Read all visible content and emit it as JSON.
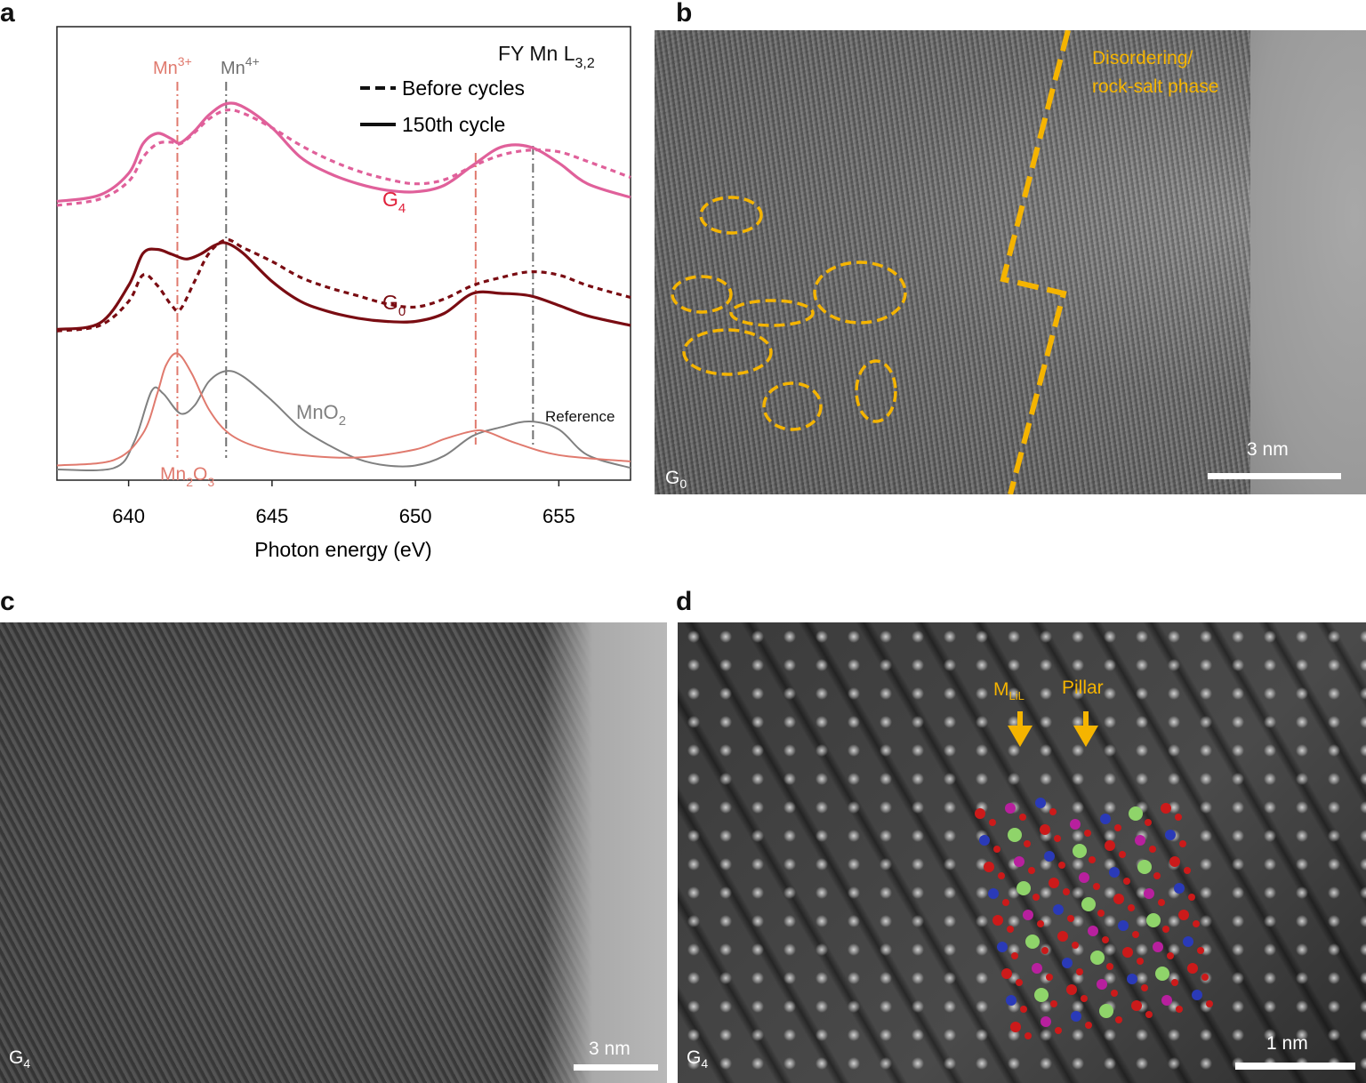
{
  "panels": {
    "a": {
      "letter": "a"
    },
    "b": {
      "letter": "b",
      "annotation_line1": "Disordering/",
      "annotation_line2": "rock-salt phase",
      "sample_label": "G",
      "sample_sub": "0",
      "scale_label": "3 nm"
    },
    "c": {
      "letter": "c",
      "sample_label": "G",
      "sample_sub": "4",
      "scale_label": "3 nm"
    },
    "d": {
      "letter": "d",
      "sample_label": "G",
      "sample_sub": "4",
      "scale_label": "1 nm",
      "arrow1_label": "M",
      "arrow1_sub": "LiL",
      "arrow2_label": "Pillar"
    }
  },
  "chart_data": {
    "type": "line",
    "title": "FY Mn L",
    "title_sub": "3,2",
    "xlabel": "Photon energy (eV)",
    "ylabel": "",
    "xlim": [
      637.5,
      657.5
    ],
    "xticks": [
      640,
      645,
      650,
      655
    ],
    "legend": {
      "placement": "top-right",
      "dashed_label": "Before cycles",
      "solid_label": "150th cycle"
    },
    "reference_lines": [
      {
        "label": "Mn",
        "sup": "3+",
        "x": [
          641.7,
          652.1
        ],
        "color": "#e07a6e"
      },
      {
        "label": "Mn",
        "sup": "4+",
        "x": [
          643.4,
          654.1
        ],
        "color": "#707070"
      }
    ],
    "series": [
      {
        "name": "G4",
        "label": "G",
        "label_sub": "4",
        "style": "solid",
        "color": "#e0609a",
        "offset": 3.35,
        "x": [
          637.5,
          639,
          640,
          640.5,
          641,
          641.5,
          641.8,
          642.3,
          642.8,
          643.4,
          644,
          645,
          646,
          647,
          648,
          649,
          650,
          651,
          652,
          653,
          654,
          655,
          656,
          657.5
        ],
        "y": [
          0.0,
          0.08,
          0.35,
          0.72,
          0.85,
          0.78,
          0.73,
          0.88,
          1.08,
          1.22,
          1.18,
          0.92,
          0.55,
          0.35,
          0.22,
          0.14,
          0.12,
          0.2,
          0.45,
          0.68,
          0.68,
          0.48,
          0.22,
          0.05
        ]
      },
      {
        "name": "G4 before cycles",
        "style": "dashed",
        "color": "#e0609a",
        "offset": 3.35,
        "x": [
          637.5,
          639,
          640,
          640.5,
          641,
          641.5,
          641.8,
          642.3,
          642.8,
          643.4,
          644,
          645,
          646,
          647,
          648,
          649,
          650,
          651,
          652,
          653,
          654,
          655,
          656,
          657.5
        ],
        "y": [
          -0.05,
          0.03,
          0.25,
          0.55,
          0.72,
          0.74,
          0.72,
          0.86,
          1.03,
          1.14,
          1.1,
          0.92,
          0.7,
          0.52,
          0.38,
          0.28,
          0.22,
          0.27,
          0.44,
          0.58,
          0.64,
          0.62,
          0.5,
          0.3
        ]
      },
      {
        "name": "G0",
        "label": "G",
        "label_sub": "0",
        "style": "solid",
        "color": "#7a0c12",
        "offset": 1.75,
        "x": [
          637.5,
          639,
          640,
          640.5,
          641,
          641.5,
          642,
          642.5,
          643,
          643.4,
          644,
          645,
          646,
          647,
          648,
          649,
          650,
          651,
          652,
          653,
          654,
          655,
          656,
          657.5
        ],
        "y": [
          0.0,
          0.08,
          0.55,
          0.95,
          1.0,
          0.94,
          0.88,
          0.94,
          1.05,
          1.08,
          0.95,
          0.6,
          0.35,
          0.22,
          0.14,
          0.1,
          0.1,
          0.2,
          0.45,
          0.45,
          0.42,
          0.3,
          0.17,
          0.05
        ]
      },
      {
        "name": "G0 before cycles",
        "style": "dashed",
        "color": "#7a0c12",
        "offset": 1.75,
        "x": [
          637.5,
          639,
          640,
          640.5,
          641,
          641.5,
          641.8,
          642.3,
          642.8,
          643.4,
          644,
          645,
          646,
          647,
          648,
          649,
          650,
          651,
          652,
          653,
          654,
          655,
          656,
          657.5
        ],
        "y": [
          -0.02,
          0.05,
          0.35,
          0.68,
          0.55,
          0.3,
          0.25,
          0.6,
          0.95,
          1.12,
          1.02,
          0.85,
          0.65,
          0.52,
          0.42,
          0.32,
          0.28,
          0.38,
          0.55,
          0.65,
          0.72,
          0.68,
          0.55,
          0.4
        ]
      },
      {
        "name": "MnO2",
        "label": "MnO",
        "label_sub": "2",
        "style": "solid",
        "color": "#808080",
        "offset": 0,
        "x": [
          637.5,
          639.5,
          640.2,
          640.8,
          641.2,
          641.8,
          642.3,
          642.8,
          643.4,
          644,
          645,
          646,
          647,
          648,
          649,
          650,
          651,
          652,
          653,
          654,
          655,
          656,
          657.5
        ],
        "y": [
          0.0,
          0.02,
          0.35,
          0.98,
          0.95,
          0.7,
          0.8,
          1.1,
          1.23,
          1.16,
          0.86,
          0.52,
          0.3,
          0.13,
          0.05,
          0.05,
          0.17,
          0.42,
          0.53,
          0.6,
          0.5,
          0.18,
          0.02
        ]
      },
      {
        "name": "Mn2O3",
        "label": "Mn",
        "label_sub1": "2",
        "label_mid": "O",
        "label_sub2": "3",
        "style": "solid",
        "color": "#e07a6e",
        "offset": 0,
        "x": [
          637.5,
          639.5,
          640.5,
          641,
          641.3,
          641.7,
          642.2,
          642.8,
          643.5,
          644.5,
          646,
          648,
          650,
          651,
          652,
          652.5,
          653.5,
          655,
          657.5
        ],
        "y": [
          0.05,
          0.12,
          0.45,
          0.95,
          1.3,
          1.45,
          1.2,
          0.75,
          0.45,
          0.28,
          0.18,
          0.15,
          0.25,
          0.38,
          0.48,
          0.47,
          0.33,
          0.18,
          0.1
        ]
      }
    ],
    "annotations": [
      "Reference"
    ]
  }
}
